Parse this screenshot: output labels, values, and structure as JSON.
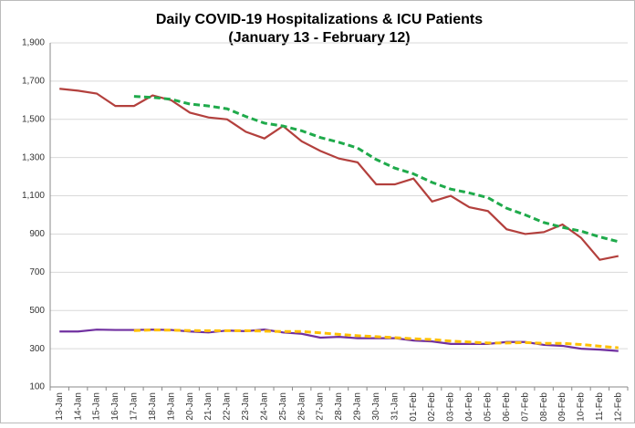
{
  "chart_data": {
    "type": "line",
    "title": "Daily COVID-19 Hospitalizations & ICU Patients",
    "subtitle": "(January 13 - February 12)",
    "categories": [
      "13-Jan",
      "14-Jan",
      "15-Jan",
      "16-Jan",
      "17-Jan",
      "18-Jan",
      "19-Jan",
      "20-Jan",
      "21-Jan",
      "22-Jan",
      "23-Jan",
      "24-Jan",
      "25-Jan",
      "26-Jan",
      "27-Jan",
      "28-Jan",
      "29-Jan",
      "30-Jan",
      "31-Jan",
      "01-Feb",
      "02-Feb",
      "03-Feb",
      "04-Feb",
      "05-Feb",
      "06-Feb",
      "07-Feb",
      "08-Feb",
      "09-Feb",
      "10-Feb",
      "11-Feb",
      "12-Feb"
    ],
    "series": [
      {
        "color": "#b3403d",
        "dashed": false,
        "values": [
          1660,
          1650,
          1635,
          1570,
          1570,
          1625,
          1600,
          1535,
          1510,
          1500,
          1435,
          1400,
          1465,
          1385,
          1335,
          1295,
          1275,
          1160,
          1160,
          1190,
          1070,
          1100,
          1040,
          1020,
          925,
          900,
          910,
          950,
          880,
          765,
          785
        ]
      },
      {
        "color": "#1faa4b",
        "dashed": true,
        "values": [
          null,
          null,
          null,
          null,
          1620,
          1615,
          1605,
          1580,
          1570,
          1555,
          1515,
          1480,
          1465,
          1440,
          1405,
          1380,
          1350,
          1290,
          1245,
          1215,
          1170,
          1135,
          1115,
          1090,
          1035,
          1000,
          960,
          935,
          915,
          885,
          860
        ]
      },
      {
        "color": "#7030a0",
        "dashed": false,
        "values": [
          390,
          390,
          400,
          398,
          398,
          400,
          398,
          390,
          385,
          395,
          392,
          400,
          385,
          378,
          358,
          362,
          355,
          355,
          355,
          343,
          338,
          325,
          325,
          325,
          335,
          335,
          320,
          315,
          300,
          295,
          288
        ]
      },
      {
        "color": "#ffc000",
        "dashed": true,
        "values": [
          null,
          null,
          null,
          null,
          395,
          398,
          397,
          395,
          394,
          394,
          394,
          392,
          390,
          390,
          383,
          375,
          368,
          363,
          358,
          352,
          348,
          340,
          335,
          330,
          330,
          332,
          328,
          328,
          322,
          313,
          305
        ]
      }
    ],
    "ylim": [
      100,
      1900
    ],
    "yticks": [
      100,
      300,
      500,
      700,
      900,
      {
        "value": 1100,
        "label": "1,100"
      },
      {
        "value": 1300,
        "label": "1,300"
      },
      {
        "value": 1500,
        "label": "1,500"
      },
      {
        "value": 1700,
        "label": "1,700"
      },
      {
        "value": 1900,
        "label": "1,900"
      }
    ],
    "grid": true
  }
}
